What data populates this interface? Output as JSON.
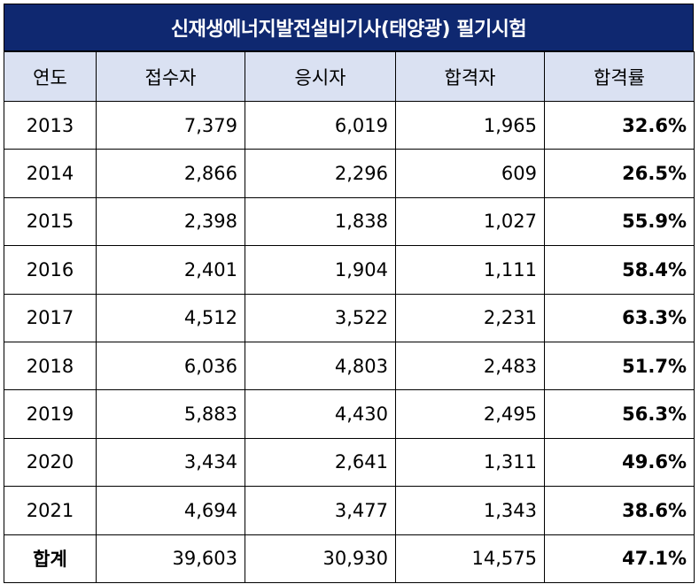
{
  "title": "신재생에너지발전설비기사(태양광) 필기시험",
  "headers": [
    "연도",
    "접수자",
    "응시자",
    "합격자",
    "합격률"
  ],
  "rows": [
    [
      "2013",
      "7,379",
      "6,019",
      "1,965",
      "32.6%"
    ],
    [
      "2014",
      "2,866",
      "2,296",
      "609",
      "26.5%"
    ],
    [
      "2015",
      "2,398",
      "1,838",
      "1,027",
      "55.9%"
    ],
    [
      "2016",
      "2,401",
      "1,904",
      "1,111",
      "58.4%"
    ],
    [
      "2017",
      "4,512",
      "3,522",
      "2,231",
      "63.3%"
    ],
    [
      "2018",
      "6,036",
      "4,803",
      "2,483",
      "51.7%"
    ],
    [
      "2019",
      "5,883",
      "4,430",
      "2,495",
      "56.3%"
    ],
    [
      "2020",
      "3,434",
      "2,641",
      "1,311",
      "49.6%"
    ],
    [
      "2021",
      "4,694",
      "3,477",
      "1,343",
      "38.6%"
    ]
  ],
  "total": [
    "합계",
    "39,603",
    "30,930",
    "14,575",
    "47.1%"
  ],
  "colors": {
    "title_bg": "#0f2870",
    "header_bg": "#dae1f2"
  }
}
